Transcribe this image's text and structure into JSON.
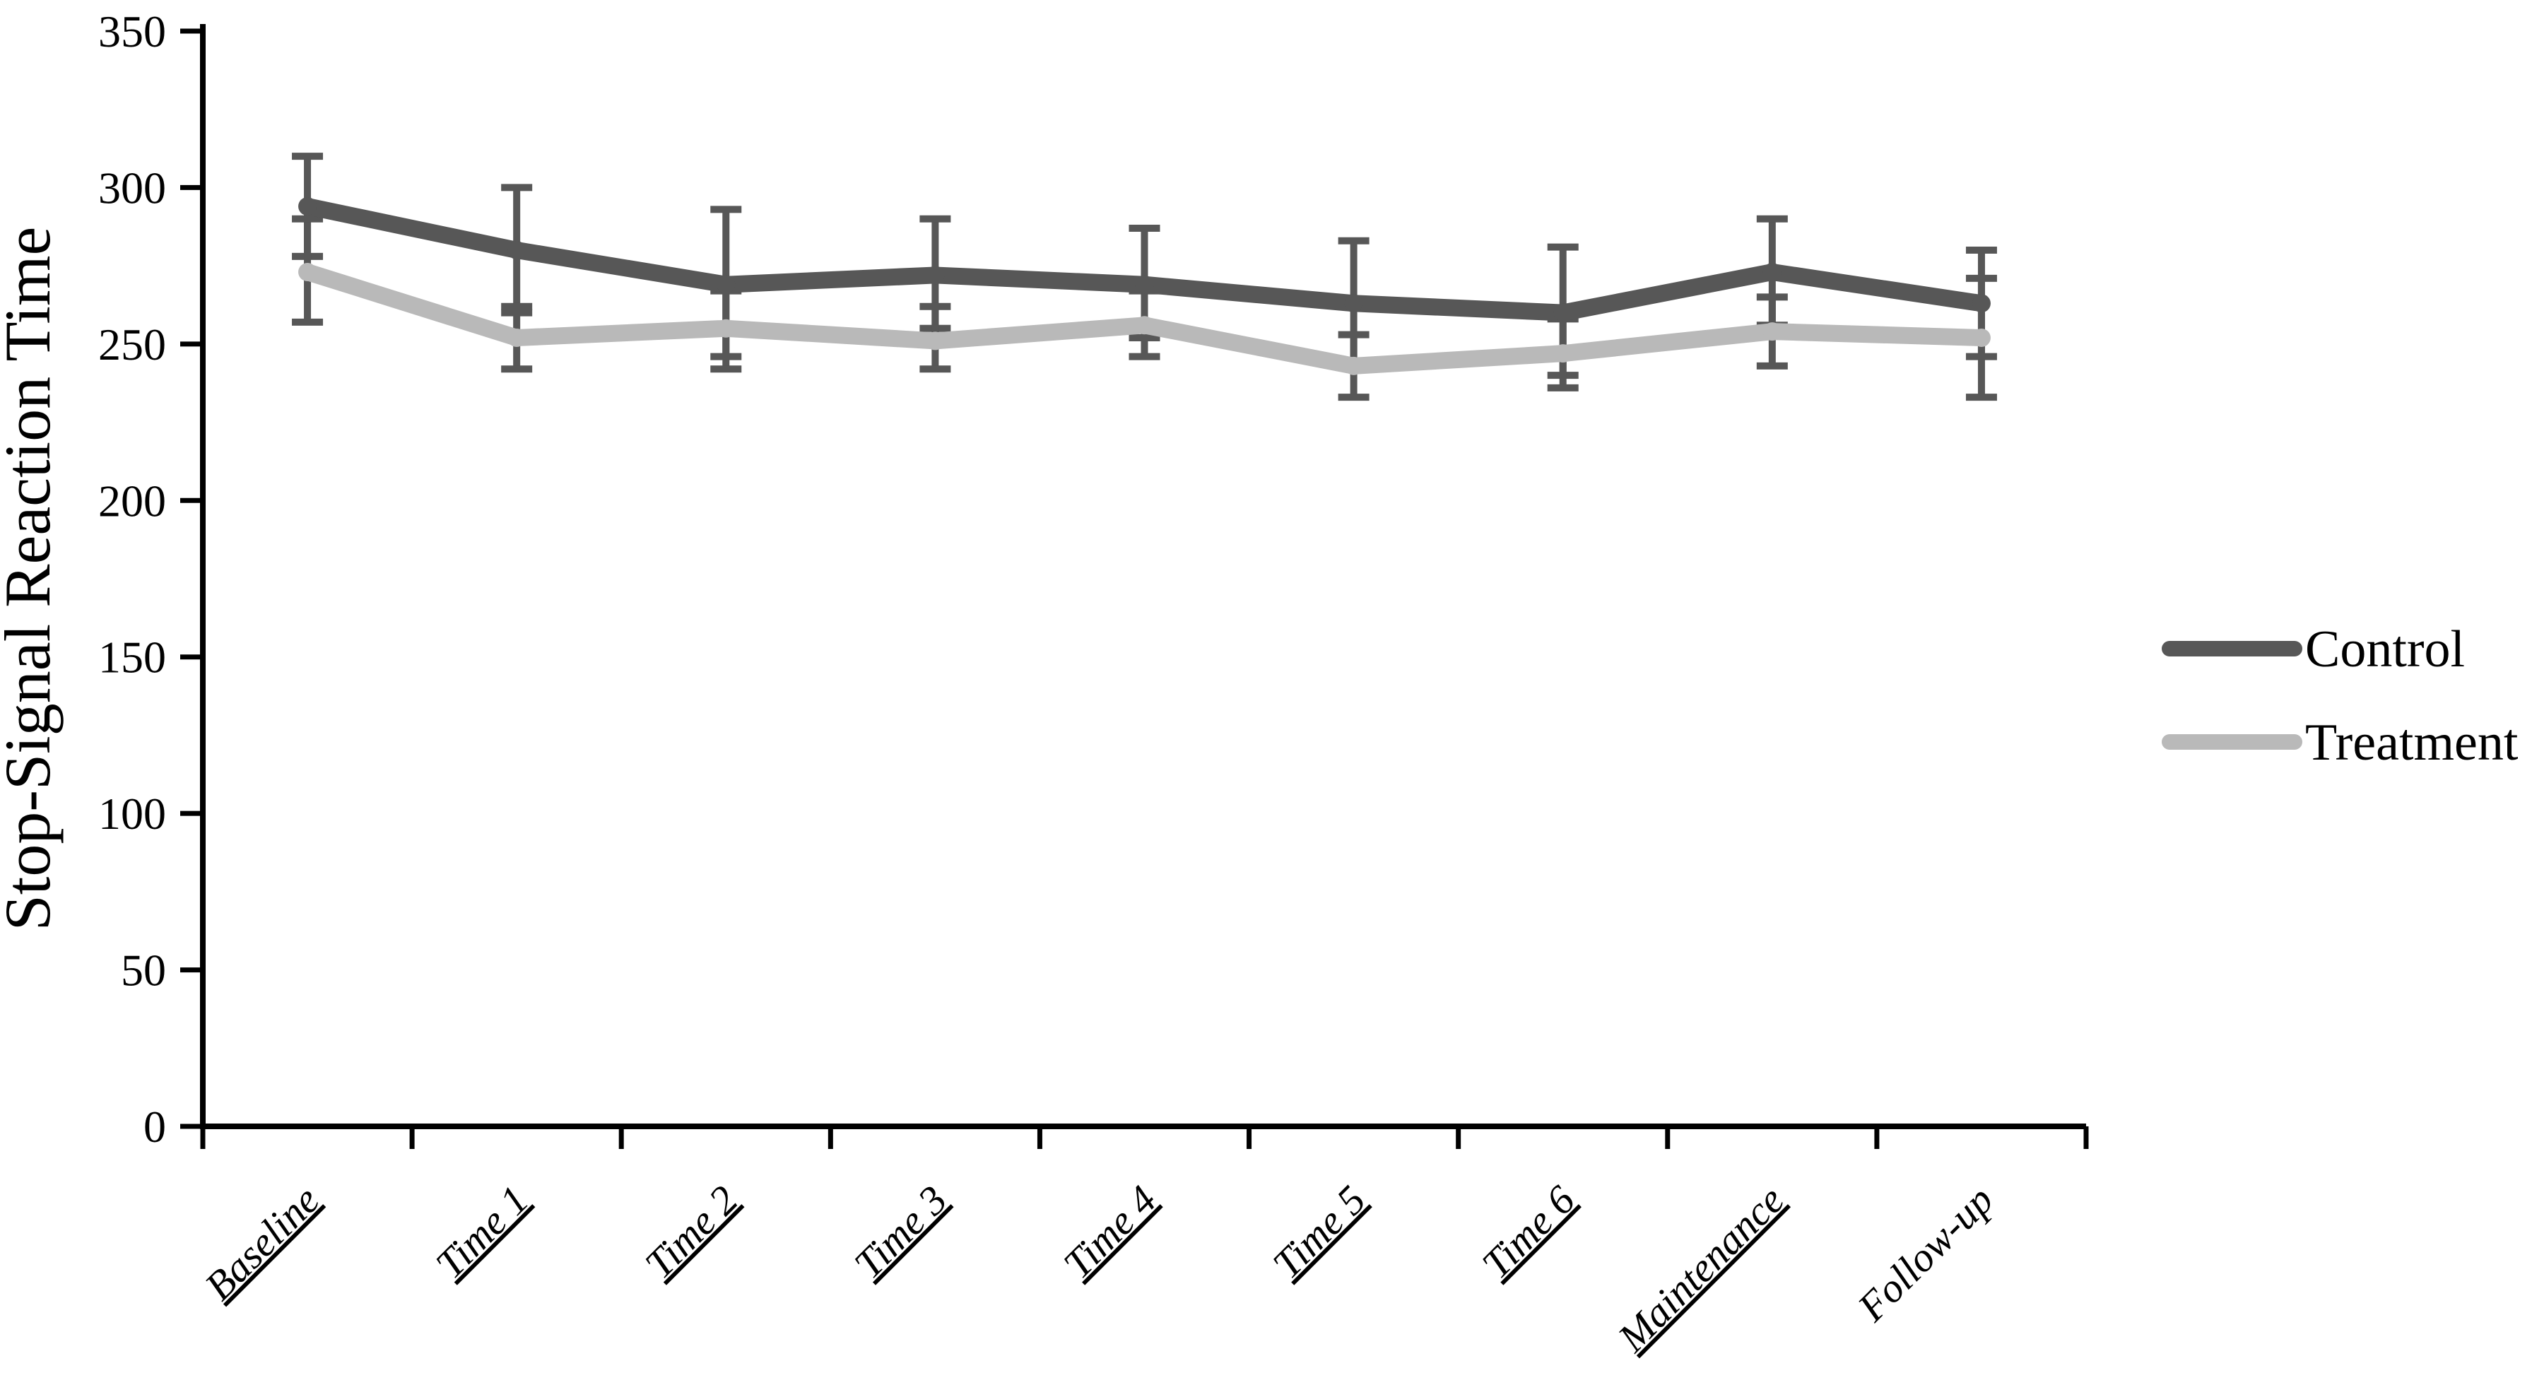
{
  "chart_data": {
    "type": "line",
    "title": "",
    "xlabel": "",
    "ylabel": "Stop-Signal Reaction Time",
    "ylim": [
      0,
      350
    ],
    "ytick_step": 50,
    "yticks": [
      0,
      50,
      100,
      150,
      200,
      250,
      300,
      350
    ],
    "grid": false,
    "legend_position": "right",
    "categories": [
      "Baseline",
      "Time 1",
      "Time 2",
      "Time 3",
      "Time 4",
      "Time 5",
      "Time 6",
      "Maintenance",
      "Follow-up"
    ],
    "category_underline": [
      true,
      true,
      true,
      true,
      true,
      true,
      true,
      true,
      false
    ],
    "error_bar_color": "#575757",
    "series": [
      {
        "name": "Control",
        "color": "#575757",
        "values": [
          294,
          280,
          269,
          272,
          269,
          263,
          260,
          273,
          263
        ],
        "error_top": [
          310,
          300,
          293,
          290,
          287,
          283,
          281,
          290,
          280
        ],
        "error_bottom": [
          278,
          260,
          246,
          255,
          252,
          243,
          240,
          256,
          246
        ]
      },
      {
        "name": "Treatment",
        "color": "#b9b9b9",
        "values": [
          273,
          252,
          255,
          251,
          256,
          243,
          247,
          254,
          252
        ],
        "error_top": [
          290,
          262,
          267,
          262,
          267,
          253,
          258,
          265,
          271
        ],
        "error_bottom": [
          257,
          242,
          242,
          242,
          246,
          233,
          236,
          243,
          233
        ]
      }
    ]
  }
}
